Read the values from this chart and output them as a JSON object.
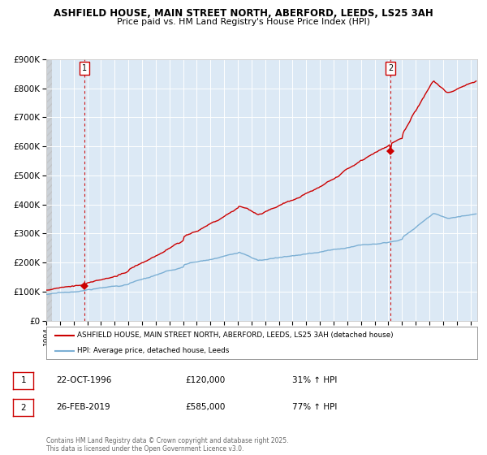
{
  "title_line1": "ASHFIELD HOUSE, MAIN STREET NORTH, ABERFORD, LEEDS, LS25 3AH",
  "title_line2": "Price paid vs. HM Land Registry's House Price Index (HPI)",
  "background_color": "#dce9f5",
  "plot_bg_color": "#dce9f5",
  "outer_bg_color": "#ffffff",
  "red_line_color": "#cc0000",
  "blue_line_color": "#7bafd4",
  "vline_color": "#cc0000",
  "grid_color": "#ffffff",
  "xmin": 1994.0,
  "xmax": 2025.5,
  "ymin": 0,
  "ymax": 900000,
  "yticks": [
    0,
    100000,
    200000,
    300000,
    400000,
    500000,
    600000,
    700000,
    800000,
    900000
  ],
  "ytick_labels": [
    "£0",
    "£100K",
    "£200K",
    "£300K",
    "£400K",
    "£500K",
    "£600K",
    "£700K",
    "£800K",
    "£900K"
  ],
  "xticks": [
    1994,
    1995,
    1996,
    1997,
    1998,
    1999,
    2000,
    2001,
    2002,
    2003,
    2004,
    2005,
    2006,
    2007,
    2008,
    2009,
    2010,
    2011,
    2012,
    2013,
    2014,
    2015,
    2016,
    2017,
    2018,
    2019,
    2020,
    2021,
    2022,
    2023,
    2024,
    2025
  ],
  "sale1_x": 1996.8,
  "sale1_y": 120000,
  "sale1_label": "1",
  "sale1_date": "22-OCT-1996",
  "sale1_price": "£120,000",
  "sale1_hpi": "31% ↑ HPI",
  "sale2_x": 2019.15,
  "sale2_y": 585000,
  "sale2_label": "2",
  "sale2_date": "26-FEB-2019",
  "sale2_price": "£585,000",
  "sale2_hpi": "77% ↑ HPI",
  "legend_line1": "ASHFIELD HOUSE, MAIN STREET NORTH, ABERFORD, LEEDS, LS25 3AH (detached house)",
  "legend_line2": "HPI: Average price, detached house, Leeds",
  "footnote1": "Contains HM Land Registry data © Crown copyright and database right 2025.",
  "footnote2": "This data is licensed under the Open Government Licence v3.0."
}
